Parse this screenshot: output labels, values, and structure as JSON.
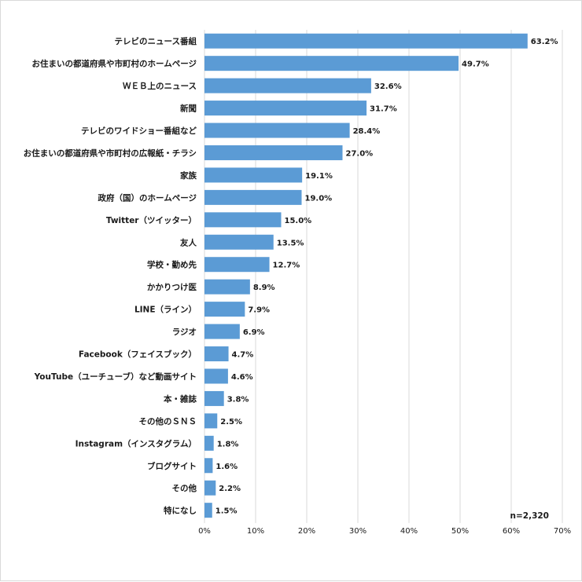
{
  "chart_data": {
    "type": "bar",
    "orientation": "horizontal",
    "categories": [
      "テレビのニュース番組",
      "お住まいの都道府県や市町村のホームページ",
      "ＷＥＢ上のニュース",
      "新聞",
      "テレビのワイドショー番組など",
      "お住まいの都道府県や市町村の広報紙・チラシ",
      "家族",
      "政府（国）のホームページ",
      "Twitter（ツイッター）",
      "友人",
      "学校・勤め先",
      "かかりつけ医",
      "LINE（ライン）",
      "ラジオ",
      "Facebook（フェイスブック）",
      "YouTube（ユーチューブ）など動画サイト",
      "本・雑誌",
      "その他のＳＮＳ",
      "Instagram（インスタグラム）",
      "ブログサイト",
      "その他",
      "特になし"
    ],
    "values": [
      63.2,
      49.7,
      32.6,
      31.7,
      28.4,
      27.0,
      19.1,
      19.0,
      15.0,
      13.5,
      12.7,
      8.9,
      7.9,
      6.9,
      4.7,
      4.6,
      3.8,
      2.5,
      1.8,
      1.6,
      2.2,
      1.5
    ],
    "value_labels": [
      "63.2%",
      "49.7%",
      "32.6%",
      "31.7%",
      "28.4%",
      "27.0%",
      "19.1%",
      "19.0%",
      "15.0%",
      "13.5%",
      "12.7%",
      "8.9%",
      "7.9%",
      "6.9%",
      "4.7%",
      "4.6%",
      "3.8%",
      "2.5%",
      "1.8%",
      "1.6%",
      "2.2%",
      "1.5%"
    ],
    "xticks": [
      0,
      10,
      20,
      30,
      40,
      50,
      60,
      70
    ],
    "xtick_labels": [
      "0%",
      "10%",
      "20%",
      "30%",
      "40%",
      "50%",
      "60%",
      "70%"
    ],
    "xlim": [
      0,
      70
    ],
    "note": "n=2,320",
    "bar_color": "#5b9bd5",
    "grid": true
  }
}
